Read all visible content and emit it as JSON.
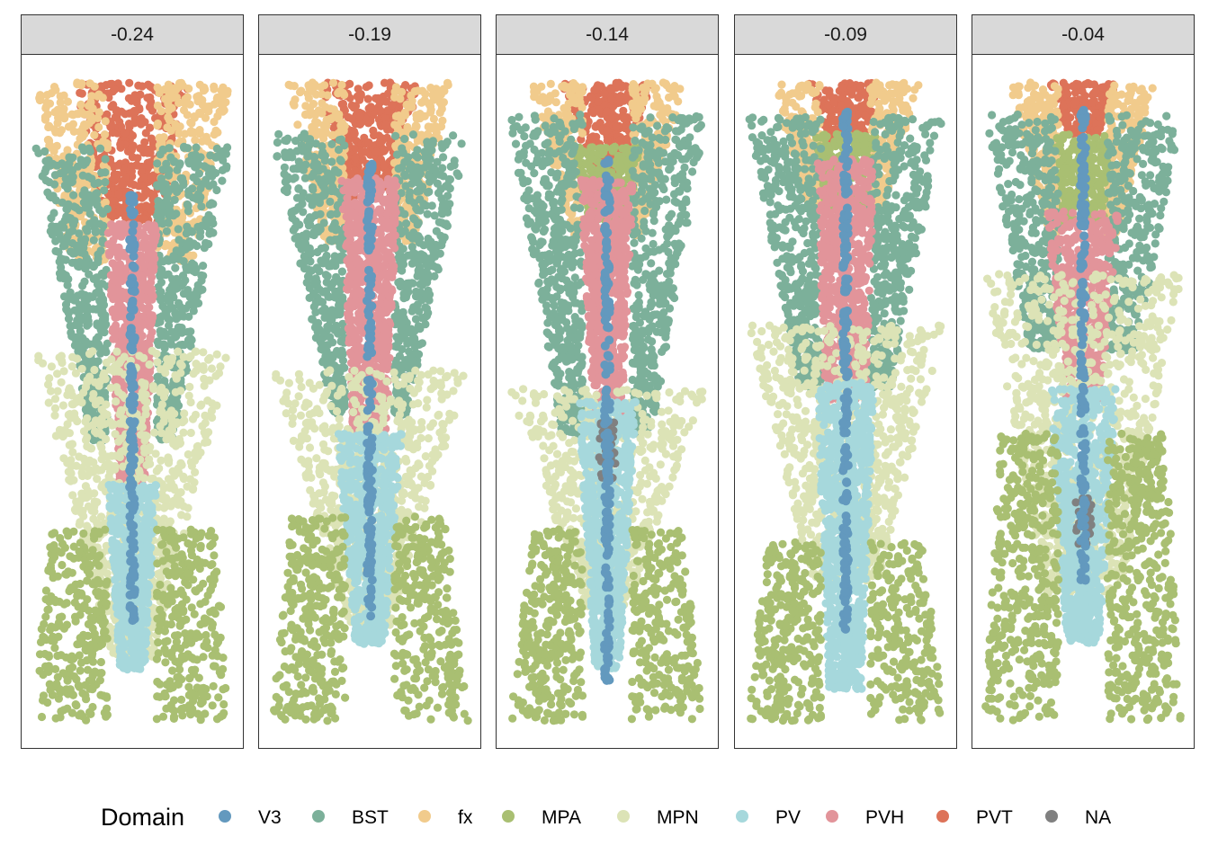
{
  "chart_data": {
    "type": "scatter",
    "title": "",
    "xlabel": "",
    "ylabel": "",
    "facet_by": "section position",
    "facets": [
      "-0.24",
      "-0.19",
      "-0.14",
      "-0.09",
      "-0.04"
    ],
    "legend": {
      "title": "Domain",
      "position": "bottom",
      "entries": [
        {
          "label": "V3",
          "color": "#6399BE"
        },
        {
          "label": "BST",
          "color": "#7CB09A"
        },
        {
          "label": "fx",
          "color": "#F1CB8C"
        },
        {
          "label": "MPA",
          "color": "#A9BF72"
        },
        {
          "label": "MPN",
          "color": "#DCE3B6"
        },
        {
          "label": "PV",
          "color": "#A6D8DC"
        },
        {
          "label": "PVH",
          "color": "#E2949A"
        },
        {
          "label": "PVT",
          "color": "#DD7359"
        },
        {
          "label": "NA",
          "color": "#808080"
        }
      ]
    },
    "axes": {
      "x_ticks_shown": false,
      "y_ticks_shown": false,
      "grid": false
    },
    "panel_background": "#ffffff",
    "strip_background": "#d9d9d9",
    "regions": [
      {
        "facet": "-0.24",
        "domains": [
          {
            "domain": "PVT",
            "y_range": [
              0.0,
              0.22
            ],
            "half_width": [
              0.28,
              0.13
            ]
          },
          {
            "domain": "fx",
            "y_range": [
              0.0,
              0.28
            ],
            "side_half_width": [
              0.48,
              0.3
            ]
          },
          {
            "domain": "BST",
            "y_range": [
              0.1,
              0.56
            ],
            "side_half_width": [
              0.48,
              0.2
            ]
          },
          {
            "domain": "PVH",
            "y_range": [
              0.22,
              0.65
            ],
            "half_width": [
              0.12,
              0.06
            ]
          },
          {
            "domain": "MPN",
            "y_range": [
              0.42,
              0.9
            ],
            "half_width": [
              0.48,
              0.1
            ]
          },
          {
            "domain": "PV",
            "y_range": [
              0.63,
              0.92
            ],
            "half_width": [
              0.12,
              0.06
            ]
          },
          {
            "domain": "MPA",
            "y_range": [
              0.7,
              1.0
            ],
            "side_half_width": [
              0.4,
              0.48
            ]
          },
          {
            "domain": "V3",
            "y_range": [
              0.17,
              0.86
            ],
            "half_width": [
              0.03,
              0.03
            ]
          }
        ]
      },
      {
        "facet": "-0.19",
        "domains": [
          {
            "domain": "PVT",
            "y_range": [
              0.0,
              0.18
            ],
            "half_width": [
              0.24,
              0.1
            ]
          },
          {
            "domain": "fx",
            "y_range": [
              0.0,
              0.25
            ],
            "side_half_width": [
              0.4,
              0.22
            ]
          },
          {
            "domain": "BST",
            "y_range": [
              0.08,
              0.52
            ],
            "side_half_width": [
              0.48,
              0.18
            ]
          },
          {
            "domain": "PVH",
            "y_range": [
              0.15,
              0.56
            ],
            "half_width": [
              0.14,
              0.08
            ]
          },
          {
            "domain": "MPN",
            "y_range": [
              0.45,
              0.85
            ],
            "half_width": [
              0.48,
              0.1
            ]
          },
          {
            "domain": "PV",
            "y_range": [
              0.55,
              0.88
            ],
            "half_width": [
              0.16,
              0.07
            ]
          },
          {
            "domain": "MPA",
            "y_range": [
              0.68,
              1.0
            ],
            "side_half_width": [
              0.38,
              0.48
            ]
          },
          {
            "domain": "V3",
            "y_range": [
              0.12,
              0.84
            ],
            "half_width": [
              0.03,
              0.03
            ]
          }
        ]
      },
      {
        "facet": "-0.14",
        "domains": [
          {
            "domain": "PVT",
            "y_range": [
              0.0,
              0.14
            ],
            "half_width": [
              0.22,
              0.08
            ]
          },
          {
            "domain": "fx",
            "y_range": [
              0.0,
              0.24
            ],
            "side_half_width": [
              0.38,
              0.16
            ]
          },
          {
            "domain": "MPA",
            "y_range": [
              0.1,
              0.22
            ],
            "half_width": [
              0.16,
              0.1
            ]
          },
          {
            "domain": "BST",
            "y_range": [
              0.05,
              0.55
            ],
            "side_half_width": [
              0.48,
              0.22
            ]
          },
          {
            "domain": "PVH",
            "y_range": [
              0.15,
              0.52
            ],
            "half_width": [
              0.13,
              0.07
            ]
          },
          {
            "domain": "MPN",
            "y_range": [
              0.48,
              0.82
            ],
            "half_width": [
              0.48,
              0.1
            ]
          },
          {
            "domain": "PV",
            "y_range": [
              0.5,
              0.92
            ],
            "half_width": [
              0.14,
              0.06
            ]
          },
          {
            "domain": "MPA",
            "y_range": [
              0.7,
              1.0
            ],
            "side_half_width": [
              0.36,
              0.48
            ]
          },
          {
            "domain": "NA",
            "y_range": [
              0.53,
              0.62
            ],
            "half_width": [
              0.04,
              0.04
            ]
          },
          {
            "domain": "V3",
            "y_range": [
              0.12,
              0.94
            ],
            "half_width": [
              0.03,
              0.03
            ]
          }
        ]
      },
      {
        "facet": "-0.09",
        "domains": [
          {
            "domain": "PVT",
            "y_range": [
              0.0,
              0.09
            ],
            "half_width": [
              0.18,
              0.08
            ]
          },
          {
            "domain": "fx",
            "y_range": [
              0.0,
              0.2
            ],
            "side_half_width": [
              0.36,
              0.18
            ]
          },
          {
            "domain": "MPA",
            "y_range": [
              0.08,
              0.2
            ],
            "half_width": [
              0.15,
              0.1
            ]
          },
          {
            "domain": "BST",
            "y_range": [
              0.05,
              0.48
            ],
            "side_half_width": [
              0.48,
              0.22
            ]
          },
          {
            "domain": "PVH",
            "y_range": [
              0.12,
              0.5
            ],
            "half_width": [
              0.14,
              0.1
            ]
          },
          {
            "domain": "MPN",
            "y_range": [
              0.38,
              0.78
            ],
            "half_width": [
              0.48,
              0.16
            ]
          },
          {
            "domain": "PV",
            "y_range": [
              0.47,
              0.95
            ],
            "half_width": [
              0.14,
              0.08
            ]
          },
          {
            "domain": "MPA",
            "y_range": [
              0.72,
              1.0
            ],
            "side_half_width": [
              0.38,
              0.48
            ]
          },
          {
            "domain": "V3",
            "y_range": [
              0.04,
              0.87
            ],
            "half_width": [
              0.03,
              0.03
            ]
          }
        ]
      },
      {
        "facet": "-0.04",
        "domains": [
          {
            "domain": "PVT",
            "y_range": [
              0.0,
              0.08
            ],
            "half_width": [
              0.16,
              0.08
            ]
          },
          {
            "domain": "fx",
            "y_range": [
              0.0,
              0.24
            ],
            "side_half_width": [
              0.36,
              0.16
            ]
          },
          {
            "domain": "MPA",
            "y_range": [
              0.08,
              0.22
            ],
            "half_width": [
              0.14,
              0.1
            ]
          },
          {
            "domain": "BST",
            "y_range": [
              0.05,
              0.42
            ],
            "side_half_width": [
              0.48,
              0.26
            ]
          },
          {
            "domain": "PVH",
            "y_range": [
              0.2,
              0.5
            ],
            "half_width": [
              0.18,
              0.08
            ]
          },
          {
            "domain": "MPN",
            "y_range": [
              0.3,
              0.8
            ],
            "half_width": [
              0.48,
              0.18
            ]
          },
          {
            "domain": "PV",
            "y_range": [
              0.48,
              0.88
            ],
            "half_width": [
              0.16,
              0.08
            ]
          },
          {
            "domain": "MPA",
            "y_range": [
              0.55,
              1.0
            ],
            "side_half_width": [
              0.4,
              0.48
            ]
          },
          {
            "domain": "NA",
            "y_range": [
              0.65,
              0.73
            ],
            "half_width": [
              0.04,
              0.04
            ]
          },
          {
            "domain": "V3",
            "y_range": [
              0.04,
              0.78
            ],
            "half_width": [
              0.03,
              0.03
            ]
          }
        ]
      }
    ]
  }
}
